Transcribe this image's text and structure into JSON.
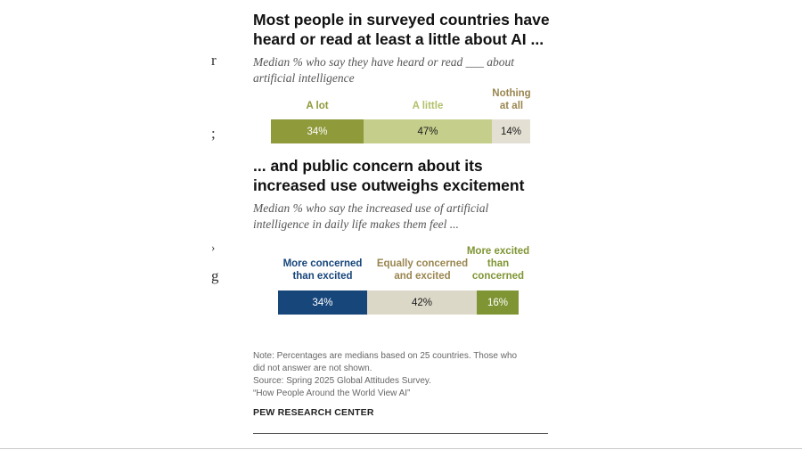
{
  "stray_text": {
    "a": "r",
    "b": ";",
    "c": "›",
    "d": "g"
  },
  "chart_data": [
    {
      "type": "bar",
      "orientation": "horizontal-stacked",
      "title": "Most people in surveyed countries have heard or read at least a little about AI ...",
      "subtitle": "Median % who say they have heard or read ___ about artificial intelligence",
      "categories": [
        "A lot",
        "A little",
        "Nothing at all"
      ],
      "values": [
        34,
        47,
        14
      ],
      "labels": [
        "34%",
        "47%",
        "14%"
      ],
      "colors": [
        "#8f9a3a",
        "#c5cf8b",
        "#e3e0d3"
      ],
      "header_colors": [
        "#8f9a3a",
        "#b3c06a",
        "#9a8650"
      ],
      "label_colors": [
        "#ffffff",
        "#1a1a1a",
        "#1a1a1a"
      ]
    },
    {
      "type": "bar",
      "orientation": "horizontal-stacked",
      "title": "... and public concern about its increased use outweighs excitement",
      "subtitle": "Median % who say the increased use of artificial intelligence in daily life makes them feel ...",
      "categories": [
        "More concerned than excited",
        "Equally concerned and excited",
        "More excited than concerned"
      ],
      "values": [
        34,
        42,
        16
      ],
      "labels": [
        "34%",
        "42%",
        "16%"
      ],
      "colors": [
        "#17467b",
        "#dcd8c8",
        "#7f9533"
      ],
      "header_colors": [
        "#17467b",
        "#9a8650",
        "#7f9533"
      ],
      "label_colors": [
        "#ffffff",
        "#1a1a1a",
        "#ffffff"
      ]
    }
  ],
  "notes": {
    "line1": "Note: Percentages are medians based on 25 countries. Those who",
    "line2": "did not answer are not shown.",
    "line3": "Source: Spring 2025 Global Attitudes Survey.",
    "line4": "“How People Around the World View AI”"
  },
  "brand": "PEW RESEARCH CENTER"
}
